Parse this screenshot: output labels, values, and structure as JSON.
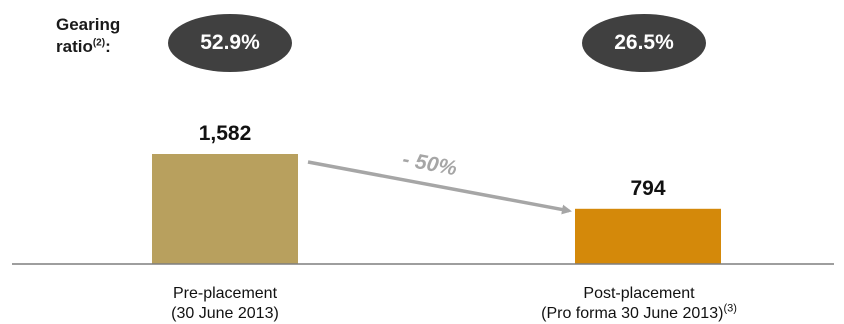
{
  "gearing": {
    "label": "Gearing ratio",
    "label_line1": "Gearing",
    "label_line2": "ratio",
    "footnote": "(2)",
    "suffix": ":",
    "values": [
      "52.9%",
      "26.5%"
    ]
  },
  "chart_data": {
    "type": "bar",
    "categories": [
      "Pre-placement (30 June 2013)",
      "Post-placement (Pro forma 30 June 2013)"
    ],
    "category_lines": [
      [
        "Pre-placement",
        "(30 June 2013)"
      ],
      [
        "Post-placement",
        "(Pro forma 30 June 2013)"
      ]
    ],
    "category_footnotes": [
      "",
      "(3)"
    ],
    "values": [
      1582,
      794
    ],
    "value_labels": [
      "1,582",
      "794"
    ],
    "annotation": "- 50%",
    "colors": [
      "#B8A05E",
      "#D4890A"
    ],
    "arrow_color": "#A6A6A6",
    "axis_color": "#7F7F7F",
    "ylim": [
      0,
      1582
    ]
  }
}
